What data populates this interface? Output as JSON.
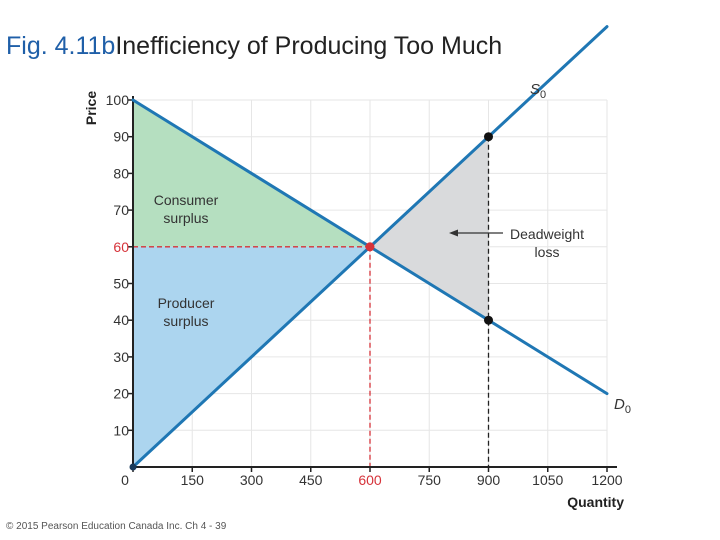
{
  "slide": {
    "fig_label": "Fig. 4.11b",
    "title": "Inefficiency of Producing Too Much",
    "footer": "© 2015 Pearson Education Canada Inc.  Ch 4 - 39"
  },
  "colors": {
    "supply": "#1f77b4",
    "demand": "#1f77b4",
    "consumer_surplus": "#b5dfc0",
    "producer_surplus": "#acd5ef",
    "deadweight": "#d9dadc",
    "highlight": "#d6333a",
    "grid": "#e6e6e6"
  },
  "chart_data": {
    "type": "line",
    "xlabel": "Quantity",
    "ylabel": "Price",
    "xlim": [
      0,
      1200
    ],
    "ylim": [
      0,
      100
    ],
    "x_ticks": [
      0,
      150,
      300,
      450,
      600,
      750,
      900,
      1050,
      1200
    ],
    "y_ticks": [
      10,
      20,
      30,
      40,
      50,
      60,
      70,
      80,
      90,
      100
    ],
    "highlight_x_tick": 600,
    "highlight_y_tick": 60,
    "grid": true,
    "series": [
      {
        "name": "Demand",
        "label": "D",
        "subscript": "0",
        "x": [
          0,
          1200
        ],
        "y": [
          100,
          20
        ]
      },
      {
        "name": "Supply",
        "label": "S",
        "subscript": "0",
        "x": [
          0,
          1200
        ],
        "y": [
          0,
          120
        ]
      }
    ],
    "equilibrium": {
      "x": 600,
      "y": 60
    },
    "points": [
      {
        "name": "supply-at-900",
        "x": 900,
        "y": 90
      },
      {
        "name": "demand-at-900",
        "x": 900,
        "y": 40
      }
    ],
    "quantity_produced": 900,
    "regions": [
      {
        "name": "consumer-surplus",
        "label_lines": [
          "Consumer",
          "surplus"
        ],
        "polygon": [
          [
            0,
            100
          ],
          [
            0,
            60
          ],
          [
            600,
            60
          ]
        ]
      },
      {
        "name": "producer-surplus",
        "label_lines": [
          "Producer",
          "surplus"
        ],
        "polygon": [
          [
            0,
            60
          ],
          [
            0,
            0
          ],
          [
            600,
            60
          ]
        ]
      },
      {
        "name": "deadweight-loss",
        "label_lines": [
          "Deadweight",
          "loss"
        ],
        "polygon": [
          [
            600,
            60
          ],
          [
            900,
            90
          ],
          [
            900,
            40
          ]
        ]
      }
    ]
  }
}
